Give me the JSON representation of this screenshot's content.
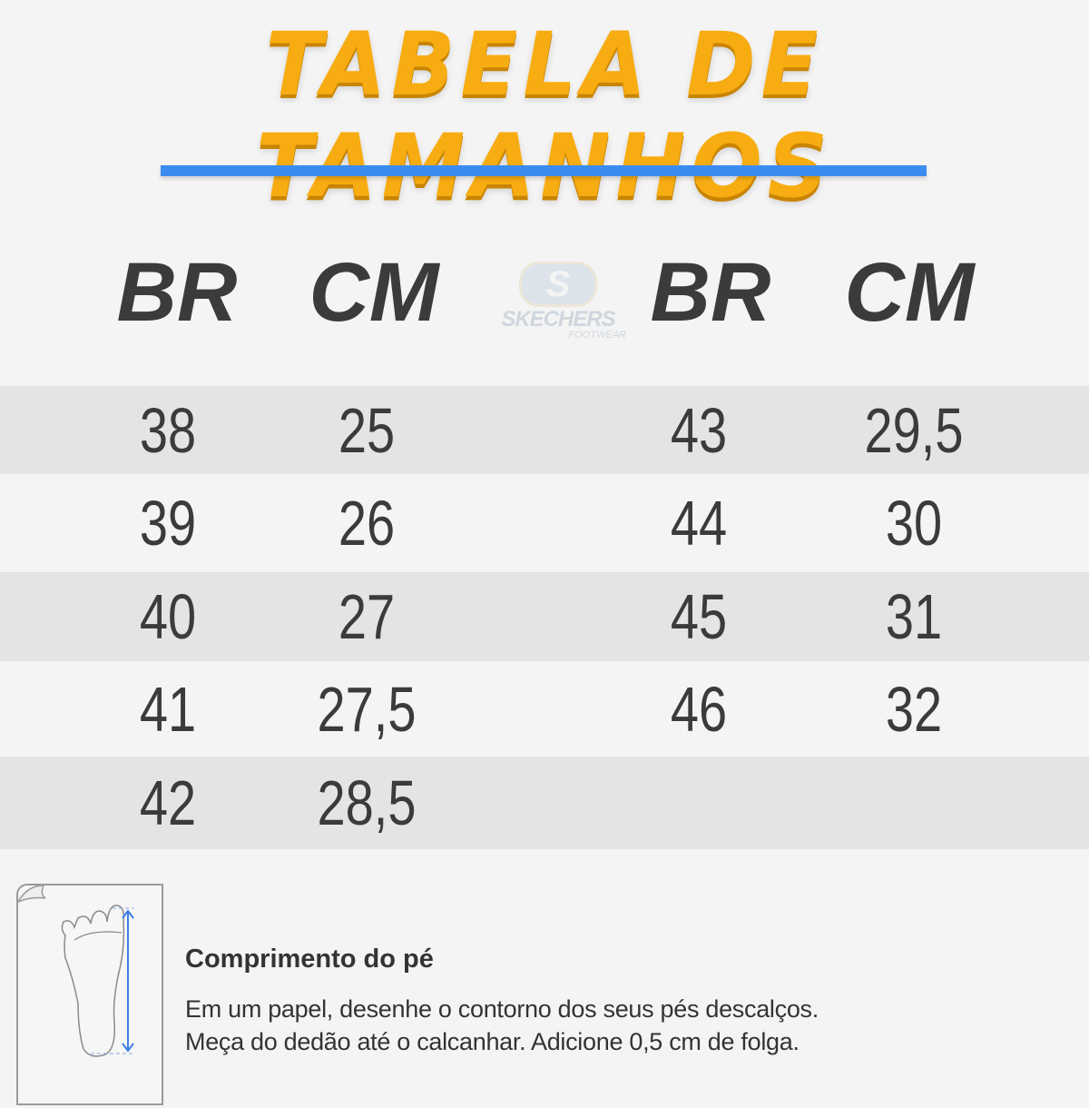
{
  "title": "TABELA DE TAMANHOS",
  "accent_color": "#3b8cf0",
  "title_color": "#f7ac12",
  "headers": {
    "br_left": "BR",
    "cm_left": "CM",
    "br_right": "BR",
    "cm_right": "CM"
  },
  "logo": {
    "letter": "S",
    "brand": "SKECHERS",
    "sub": "FOOTWEAR"
  },
  "rows": [
    {
      "br1": "38",
      "cm1": "25",
      "br2": "43",
      "cm2": "29,5"
    },
    {
      "br1": "39",
      "cm1": "26",
      "br2": "44",
      "cm2": "30"
    },
    {
      "br1": "40",
      "cm1": "27",
      "br2": "45",
      "cm2": "31"
    },
    {
      "br1": "41",
      "cm1": "27,5",
      "br2": "46",
      "cm2": "32"
    },
    {
      "br1": "42",
      "cm1": "28,5",
      "br2": "",
      "cm2": ""
    }
  ],
  "info": {
    "icon": "foot-measure-icon",
    "title": "Comprimento do pé",
    "line1": "Em um papel, desenhe o contorno dos seus pés descalços.",
    "line2": "Meça do dedão até o calcanhar. Adicione 0,5 cm de folga."
  }
}
